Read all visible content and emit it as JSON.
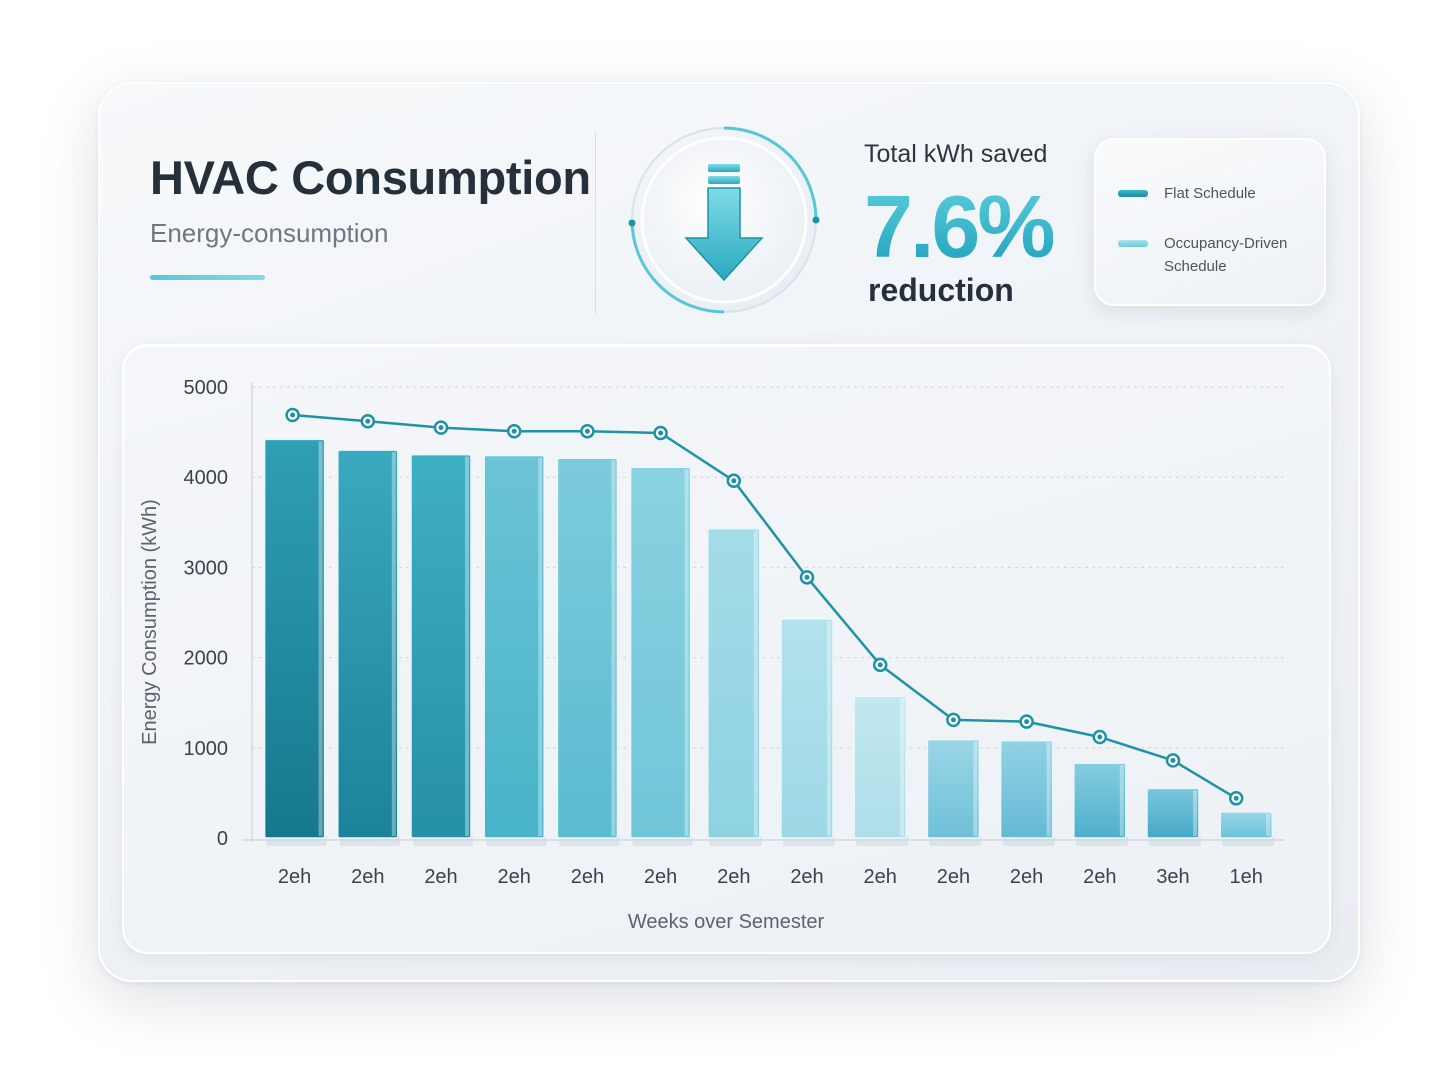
{
  "header": {
    "title": "HVAC Consumption",
    "subtitle": "Energy-consumption"
  },
  "kpi": {
    "label": "Total kWh saved",
    "value": "7.6%",
    "caption": "reduction",
    "icon": "arrow-down-icon"
  },
  "legend": {
    "items": [
      {
        "label": "Flat Schedule",
        "color": "#2aa8bd"
      },
      {
        "label": "Occupancy-Driven Schedule",
        "color": "#8ed8e6"
      }
    ]
  },
  "colors": {
    "line": "#1e93a6",
    "bar_dark": "#1d8aa0",
    "bar_light": "#bfe6ef",
    "accent": "#2bb1c8"
  },
  "chart_data": {
    "type": "bar",
    "categories": [
      "2eh",
      "2eh",
      "2eh",
      "2eh",
      "2eh",
      "2eh",
      "2eh",
      "2eh",
      "2eh",
      "2eh",
      "2eh",
      "2eh",
      "3eh",
      "1eh"
    ],
    "series": [
      {
        "name": "Flat Schedule",
        "type": "bar",
        "values": [
          4420,
          4300,
          4250,
          4240,
          4210,
          4110,
          3430,
          2430,
          1570,
          1090,
          1080,
          830,
          550,
          290
        ]
      },
      {
        "name": "Occupancy-Driven Schedule",
        "type": "line",
        "values": [
          4690,
          4620,
          4550,
          4510,
          4510,
          4490,
          3960,
          2890,
          1920,
          1310,
          1290,
          1120,
          860,
          440
        ]
      }
    ],
    "xlabel": "Weeks over Semester",
    "ylabel": "Energy Consumption (kWh)",
    "ylim": [
      0,
      5000
    ],
    "yticks": [
      0,
      1000,
      2000,
      3000,
      4000,
      5000
    ],
    "grid": true
  }
}
